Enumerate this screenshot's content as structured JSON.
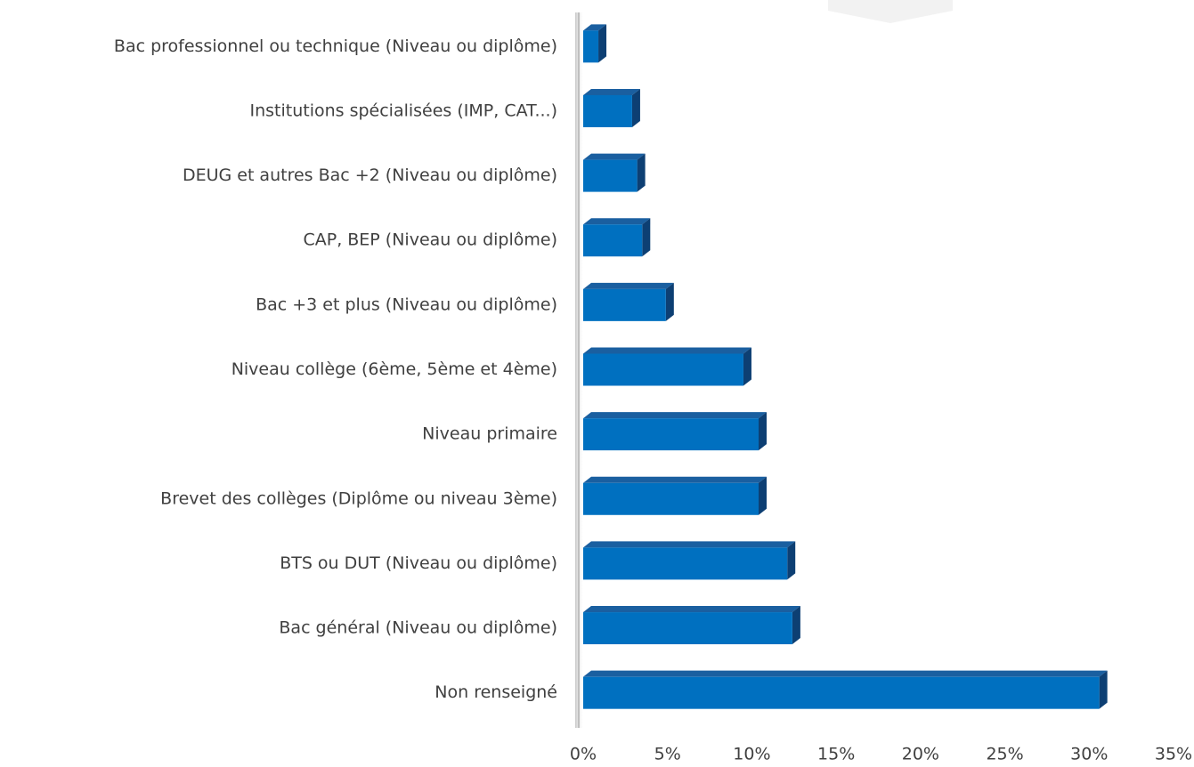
{
  "chart_data": {
    "type": "bar",
    "orientation": "horizontal",
    "categories": [
      "Bac professionnel ou technique (Niveau ou diplôme)",
      "Institutions spécialisées (IMP, CAT...)",
      "DEUG et autres Bac +2 (Niveau ou diplôme)",
      "CAP, BEP (Niveau ou diplôme)",
      "Bac +3 et plus (Niveau ou diplôme)",
      "Niveau collège (6ème, 5ème et 4ème)",
      "Niveau primaire",
      "Brevet des collèges (Diplôme ou niveau 3ème)",
      "BTS ou DUT (Niveau ou diplôme)",
      "Bac général (Niveau ou diplôme)",
      "Non renseigné"
    ],
    "values": [
      0.9,
      2.9,
      3.2,
      3.5,
      4.9,
      9.5,
      10.4,
      10.4,
      12.1,
      12.4,
      30.6
    ],
    "color": "#0070c0",
    "xlim": [
      0,
      35
    ],
    "xticks": [
      {
        "value": 0,
        "label": "0%"
      },
      {
        "value": 5,
        "label": "5%"
      },
      {
        "value": 10,
        "label": "10%"
      },
      {
        "value": 15,
        "label": "15%"
      },
      {
        "value": 20,
        "label": "20%"
      },
      {
        "value": 25,
        "label": "25%"
      },
      {
        "value": 30,
        "label": "30%"
      },
      {
        "value": 35,
        "label": "35%"
      }
    ],
    "grid": false
  }
}
